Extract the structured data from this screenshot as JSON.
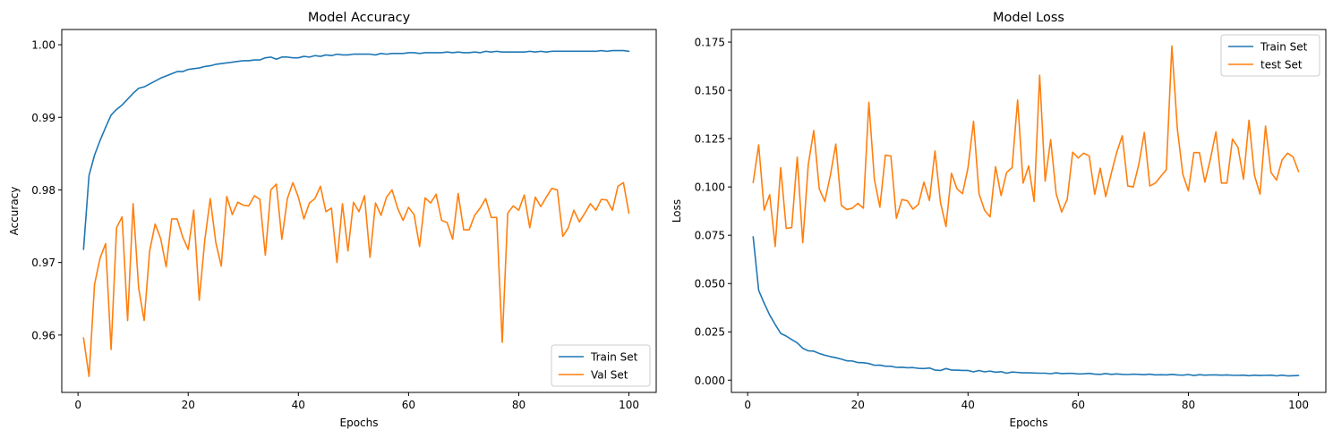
{
  "colors": {
    "train": "#1f77b4",
    "val": "#ff7f0e"
  },
  "chart_data": [
    {
      "type": "line",
      "title": "Model Accuracy",
      "xlabel": "Epochs",
      "ylabel": "Accuracy",
      "xlim": [
        -2.95,
        104.95
      ],
      "ylim": [
        0.9521,
        1.0021
      ],
      "xticks": [
        0,
        20,
        40,
        60,
        80,
        100
      ],
      "yticks": [
        0.96,
        0.97,
        0.98,
        0.99,
        1.0
      ],
      "ytick_labels": [
        "0.96",
        "0.97",
        "0.98",
        "0.99",
        "1.00"
      ],
      "xtick_labels": [
        "0",
        "20",
        "40",
        "60",
        "80",
        "100"
      ],
      "legend_position": "lower-right",
      "grid": false,
      "series": [
        {
          "name": "Train Set",
          "color_key": "train",
          "x_start": 1,
          "values": [
            0.9718,
            0.982,
            0.9848,
            0.9868,
            0.9886,
            0.9903,
            0.9911,
            0.9917,
            0.9925,
            0.9933,
            0.994,
            0.9942,
            0.9946,
            0.995,
            0.9954,
            0.9957,
            0.996,
            0.9963,
            0.9963,
            0.9966,
            0.9967,
            0.9968,
            0.997,
            0.9971,
            0.9973,
            0.9974,
            0.9975,
            0.9976,
            0.9977,
            0.9978,
            0.9978,
            0.9979,
            0.9979,
            0.9982,
            0.9983,
            0.998,
            0.9983,
            0.9983,
            0.9982,
            0.9982,
            0.9984,
            0.9983,
            0.9985,
            0.9984,
            0.9986,
            0.9985,
            0.9987,
            0.9986,
            0.9986,
            0.9987,
            0.9987,
            0.9987,
            0.9987,
            0.9986,
            0.9988,
            0.9987,
            0.9988,
            0.9988,
            0.9988,
            0.9989,
            0.9989,
            0.9988,
            0.9989,
            0.9989,
            0.9989,
            0.9989,
            0.999,
            0.9989,
            0.999,
            0.9989,
            0.9989,
            0.999,
            0.9989,
            0.9991,
            0.999,
            0.9991,
            0.999,
            0.999,
            0.999,
            0.999,
            0.999,
            0.9991,
            0.999,
            0.9991,
            0.999,
            0.9991,
            0.9991,
            0.9991,
            0.9991,
            0.9991,
            0.9991,
            0.9991,
            0.9991,
            0.9991,
            0.9992,
            0.9991,
            0.9992,
            0.9992,
            0.9992,
            0.9991
          ]
        },
        {
          "name": "Val Set",
          "color_key": "val",
          "x_start": 1,
          "values": [
            0.9596,
            0.9543,
            0.967,
            0.9706,
            0.9726,
            0.958,
            0.9748,
            0.9763,
            0.962,
            0.9781,
            0.9665,
            0.962,
            0.9716,
            0.9753,
            0.9733,
            0.9694,
            0.976,
            0.976,
            0.9735,
            0.9718,
            0.9772,
            0.9648,
            0.973,
            0.9788,
            0.9728,
            0.9695,
            0.9791,
            0.9766,
            0.9783,
            0.9779,
            0.9778,
            0.9792,
            0.9787,
            0.971,
            0.98,
            0.9808,
            0.9732,
            0.9788,
            0.981,
            0.979,
            0.976,
            0.9782,
            0.9788,
            0.9805,
            0.977,
            0.9775,
            0.97,
            0.9781,
            0.9716,
            0.9783,
            0.977,
            0.9792,
            0.9707,
            0.9782,
            0.9765,
            0.979,
            0.98,
            0.9775,
            0.9758,
            0.9776,
            0.9766,
            0.9722,
            0.9789,
            0.9782,
            0.9794,
            0.9758,
            0.9755,
            0.9732,
            0.9795,
            0.9745,
            0.9745,
            0.9765,
            0.9775,
            0.9788,
            0.9762,
            0.9762,
            0.959,
            0.9768,
            0.9778,
            0.9772,
            0.9793,
            0.9748,
            0.979,
            0.9777,
            0.979,
            0.9802,
            0.98,
            0.9736,
            0.9748,
            0.9772,
            0.9756,
            0.9768,
            0.9781,
            0.9772,
            0.9787,
            0.9786,
            0.9772,
            0.9805,
            0.981,
            0.9768
          ]
        }
      ]
    },
    {
      "type": "line",
      "title": "Model Loss",
      "xlabel": "Epochs",
      "ylabel": "Loss",
      "xlim": [
        -2.95,
        104.95
      ],
      "ylim": [
        -0.00635,
        0.1815
      ],
      "xticks": [
        0,
        20,
        40,
        60,
        80,
        100
      ],
      "yticks": [
        0.0,
        0.025,
        0.05,
        0.075,
        0.1,
        0.125,
        0.15,
        0.175
      ],
      "ytick_labels": [
        "0.000",
        "0.025",
        "0.050",
        "0.075",
        "0.100",
        "0.125",
        "0.150",
        "0.175"
      ],
      "xtick_labels": [
        "0",
        "20",
        "40",
        "60",
        "80",
        "100"
      ],
      "legend_position": "upper-right",
      "grid": false,
      "series": [
        {
          "name": "Train Set",
          "color_key": "train",
          "x_start": 1,
          "values": [
            0.0742,
            0.0465,
            0.0398,
            0.0337,
            0.0288,
            0.0242,
            0.0228,
            0.021,
            0.0193,
            0.0165,
            0.0152,
            0.015,
            0.0138,
            0.0129,
            0.0122,
            0.0116,
            0.0109,
            0.01,
            0.0099,
            0.0091,
            0.009,
            0.0086,
            0.0077,
            0.0078,
            0.0072,
            0.0072,
            0.0066,
            0.0067,
            0.0064,
            0.0065,
            0.0061,
            0.006,
            0.0063,
            0.0052,
            0.005,
            0.006,
            0.0052,
            0.0052,
            0.005,
            0.005,
            0.0043,
            0.005,
            0.0043,
            0.0047,
            0.0041,
            0.0044,
            0.0036,
            0.0042,
            0.004,
            0.0038,
            0.0038,
            0.0037,
            0.0036,
            0.0036,
            0.0033,
            0.0038,
            0.0034,
            0.0035,
            0.0035,
            0.0032,
            0.0033,
            0.0035,
            0.0031,
            0.003,
            0.0034,
            0.003,
            0.0032,
            0.003,
            0.0029,
            0.0031,
            0.003,
            0.0028,
            0.0031,
            0.0027,
            0.0028,
            0.0027,
            0.003,
            0.0027,
            0.0026,
            0.0029,
            0.0024,
            0.0028,
            0.0026,
            0.0027,
            0.0027,
            0.0026,
            0.0027,
            0.0025,
            0.0025,
            0.0026,
            0.0023,
            0.0026,
            0.0024,
            0.0025,
            0.0026,
            0.0022,
            0.0026,
            0.0022,
            0.0023,
            0.0024
          ]
        },
        {
          "name": "test Set",
          "color_key": "val",
          "x_start": 1,
          "values": [
            0.1023,
            0.1218,
            0.088,
            0.096,
            0.0692,
            0.11,
            0.0785,
            0.079,
            0.1155,
            0.0712,
            0.1115,
            0.1292,
            0.099,
            0.0925,
            0.1058,
            0.1222,
            0.0905,
            0.0883,
            0.089,
            0.0915,
            0.089,
            0.1438,
            0.104,
            0.0895,
            0.1165,
            0.116,
            0.0838,
            0.0935,
            0.0928,
            0.0885,
            0.091,
            0.1025,
            0.093,
            0.1186,
            0.092,
            0.0795,
            0.1071,
            0.099,
            0.0965,
            0.11,
            0.134,
            0.0965,
            0.088,
            0.0845,
            0.1105,
            0.0955,
            0.1075,
            0.11,
            0.145,
            0.102,
            0.1108,
            0.0925,
            0.1578,
            0.103,
            0.1245,
            0.0965,
            0.087,
            0.0935,
            0.118,
            0.115,
            0.1175,
            0.116,
            0.0962,
            0.1097,
            0.095,
            0.107,
            0.118,
            0.1265,
            0.1005,
            0.1,
            0.1117,
            0.1282,
            0.1005,
            0.102,
            0.1055,
            0.109,
            0.173,
            0.13,
            0.1065,
            0.098,
            0.1178,
            0.1178,
            0.1025,
            0.1145,
            0.1285,
            0.102,
            0.102,
            0.1248,
            0.1205,
            0.104,
            0.1345,
            0.106,
            0.0963,
            0.1315,
            0.1075,
            0.1035,
            0.114,
            0.1175,
            0.1155,
            0.108
          ]
        }
      ]
    }
  ]
}
